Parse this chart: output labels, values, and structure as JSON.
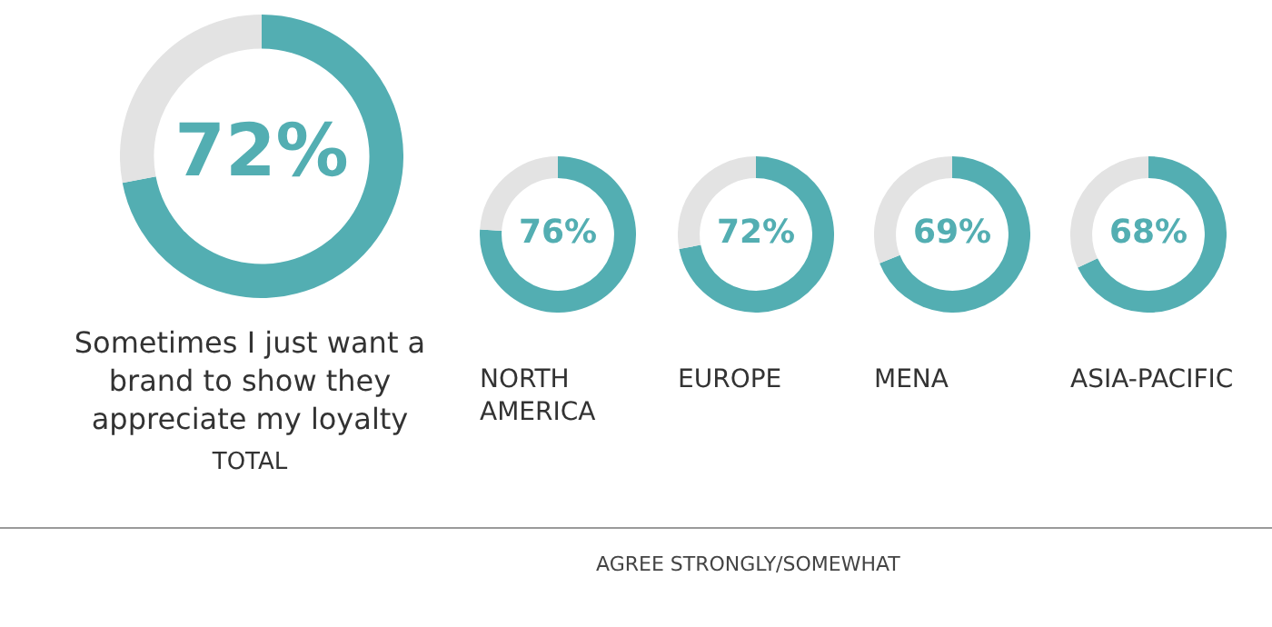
{
  "chart_data": [
    {
      "type": "donut",
      "title": "TOTAL",
      "subtitle": "Sometimes I just want a brand to show they appreciate my loyalty",
      "categories": [
        null,
        null
      ],
      "values": [
        72,
        28
      ],
      "colors": [
        "#53aeb2",
        "#e3e3e3"
      ],
      "value_labels": [
        "72%",
        null
      ],
      "annotations": [
        "AGREE STRONGLY/SOMEWHAT"
      ]
    },
    {
      "type": "donut",
      "title": "NORTH AMERICA",
      "categories": [
        null,
        null
      ],
      "values": [
        76,
        24
      ],
      "colors": [
        "#53aeb2",
        "#e3e3e3"
      ],
      "value_labels": [
        "76%",
        null
      ]
    },
    {
      "type": "donut",
      "title": "EUROPE",
      "categories": [
        null,
        null
      ],
      "values": [
        72,
        28
      ],
      "colors": [
        "#53aeb2",
        "#e3e3e3"
      ],
      "value_labels": [
        "72%",
        null
      ]
    },
    {
      "type": "donut",
      "title": "MENA",
      "categories": [
        null,
        null
      ],
      "values": [
        69,
        31
      ],
      "colors": [
        "#53aeb2",
        "#e3e3e3"
      ],
      "value_labels": [
        "69%",
        null
      ]
    },
    {
      "type": "donut",
      "title": "ASIA-PACIFIC",
      "categories": [
        null,
        null
      ],
      "values": [
        68,
        32
      ],
      "colors": [
        "#53aeb2",
        "#e3e3e3"
      ],
      "value_labels": [
        "68%",
        null
      ]
    }
  ]
}
